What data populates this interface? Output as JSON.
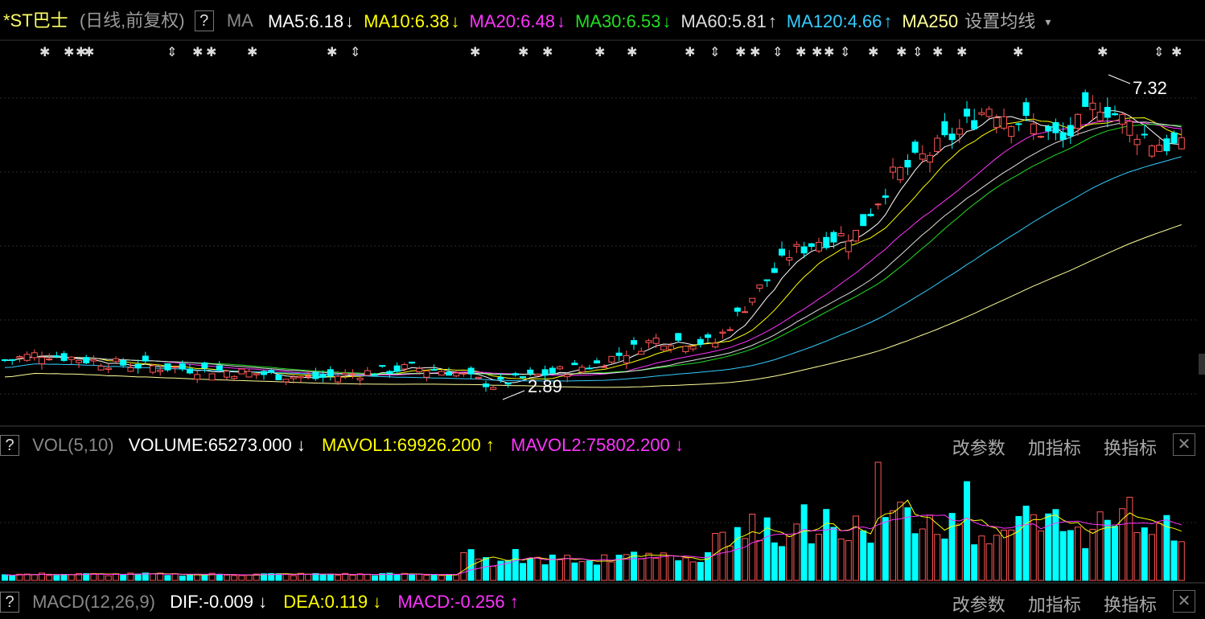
{
  "header": {
    "stock_name": "*ST巴士",
    "mode": "(日线,前复权)",
    "help": "?",
    "indicator": "MA",
    "ma": [
      {
        "label": "MA5:6.18",
        "arrow": "↓",
        "color": "#ffffff"
      },
      {
        "label": "MA10:6.38",
        "arrow": "↓",
        "color": "#ffff00"
      },
      {
        "label": "MA20:6.48",
        "arrow": "↓",
        "color": "#ff33ff"
      },
      {
        "label": "MA30:6.53",
        "arrow": "↓",
        "color": "#22dd22"
      },
      {
        "label": "MA60:5.81",
        "arrow": "↑",
        "color": "#dddddd"
      },
      {
        "label": "MA120:4.66",
        "arrow": "↑",
        "color": "#33ccff"
      },
      {
        "label": "MA250",
        "arrow": "",
        "color": "#ffff99"
      }
    ],
    "settings": "设置均线"
  },
  "vol_panel": {
    "help": "?",
    "name": "VOL(5,10)",
    "volume": "VOLUME:65273.000",
    "volume_arrow": "↓",
    "mavol1": "MAVOL1:69926.200",
    "mavol1_arrow": "↑",
    "mavol2": "MAVOL2:75802.200",
    "mavol2_arrow": "↓",
    "btn_params": "改参数",
    "btn_add": "加指标",
    "btn_switch": "换指标",
    "close": "✕"
  },
  "macd_panel": {
    "help": "?",
    "name": "MACD(12,26,9)",
    "dif": "DIF:-0.009",
    "dif_arrow": "↓",
    "dea": "DEA:0.119",
    "dea_arrow": "↓",
    "macd": "MACD:-0.256",
    "macd_arrow": "↑",
    "btn_params": "改参数",
    "btn_add": "加指标",
    "btn_switch": "换指标",
    "close": "✕"
  },
  "chart_data": {
    "type": "candlestick",
    "price_range": [
      2.6,
      7.6
    ],
    "high_label": "7.32",
    "low_label": "2.89",
    "colors": {
      "up": "#ff5555",
      "down": "#00ffff"
    }
  }
}
